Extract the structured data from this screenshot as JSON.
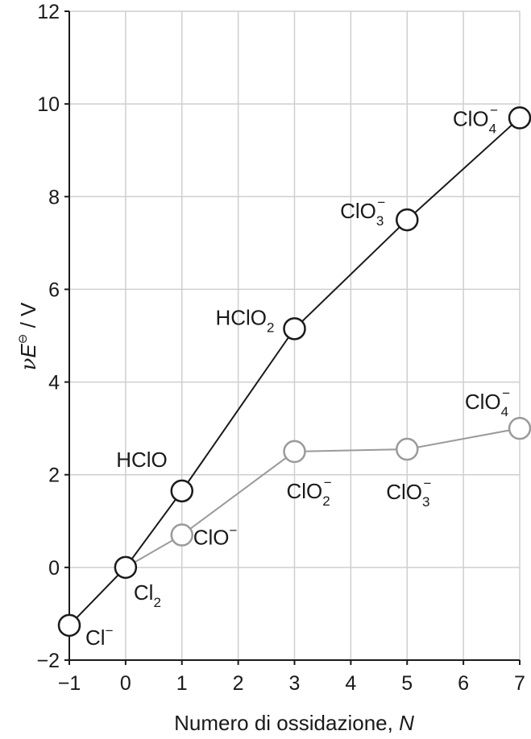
{
  "chart_data": {
    "type": "line",
    "xlabel": "Numero di ossidazione, ",
    "xlabel_var": "N",
    "ylabel_nu": "ν",
    "ylabel_E": "E",
    "ylabel_sup": "⊖",
    "ylabel_unit": " / V",
    "xlim": [
      -1,
      7
    ],
    "ylim": [
      -2,
      12
    ],
    "x_ticks": [
      -1,
      0,
      1,
      2,
      3,
      4,
      5,
      6,
      7
    ],
    "x_tick_labels": [
      "−1",
      "0",
      "1",
      "2",
      "3",
      "4",
      "5",
      "6",
      "7"
    ],
    "y_ticks": [
      -2,
      0,
      2,
      4,
      6,
      8,
      10,
      12
    ],
    "y_tick_labels": [
      "−2",
      "0",
      "2",
      "4",
      "6",
      "8",
      "10",
      "12"
    ],
    "grid": "horizontal",
    "series": [
      {
        "color": "#1a1a1a",
        "points": [
          {
            "x": -1,
            "y": -1.25,
            "label": {
              "base": "Cl",
              "sub": "",
              "sup": "−"
            }
          },
          {
            "x": 0,
            "y": 0,
            "label": {
              "base": "Cl",
              "sub": "2",
              "sup": ""
            }
          },
          {
            "x": 1,
            "y": 1.65,
            "label": {
              "base": "HClO",
              "sub": "",
              "sup": ""
            }
          },
          {
            "x": 3,
            "y": 5.15,
            "label": {
              "base": "HClO",
              "sub": "2",
              "sup": ""
            }
          },
          {
            "x": 5,
            "y": 7.5,
            "label": {
              "base": "ClO",
              "sub": "3",
              "sup": "−"
            }
          },
          {
            "x": 7,
            "y": 9.7,
            "label": {
              "base": "ClO",
              "sub": "4",
              "sup": "−"
            }
          }
        ]
      },
      {
        "color": "#9a9a9a",
        "points": [
          {
            "x": 0,
            "y": 0,
            "label": null
          },
          {
            "x": 1,
            "y": 0.7,
            "label": {
              "base": "ClO",
              "sub": "",
              "sup": "−"
            }
          },
          {
            "x": 3,
            "y": 2.5,
            "label": {
              "base": "ClO",
              "sub": "2",
              "sup": "−"
            }
          },
          {
            "x": 5,
            "y": 2.55,
            "label": {
              "base": "ClO",
              "sub": "3",
              "sup": "−"
            }
          },
          {
            "x": 7,
            "y": 3.0,
            "label": {
              "base": "ClO",
              "sub": "4",
              "sup": "−"
            }
          }
        ]
      }
    ]
  }
}
